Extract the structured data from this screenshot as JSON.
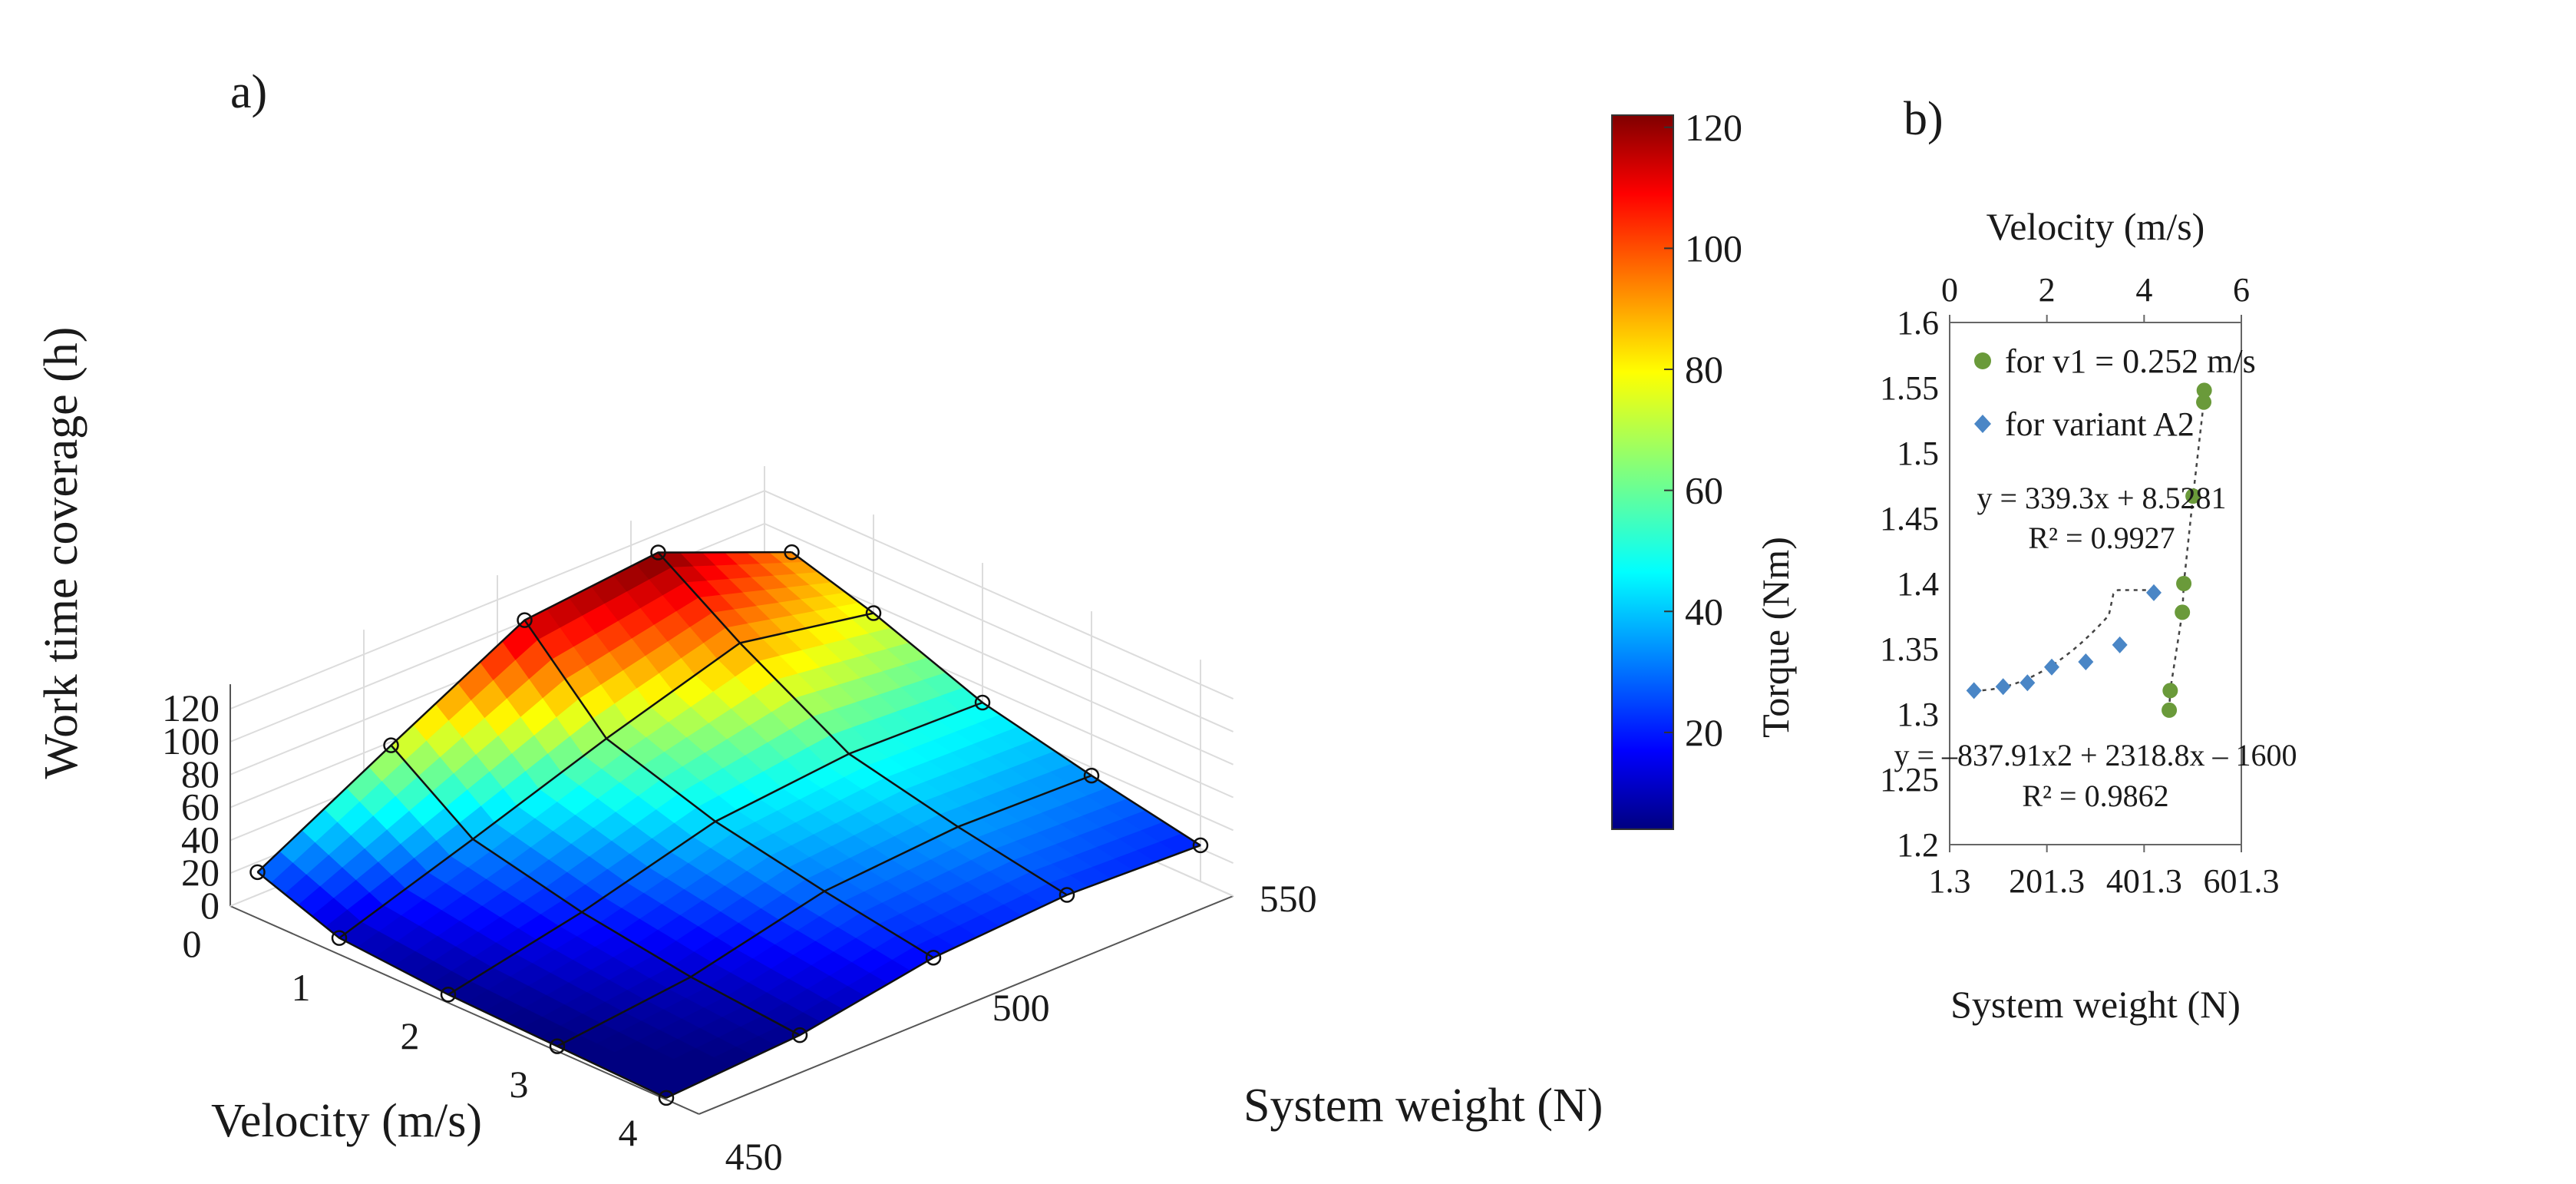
{
  "chart_data": [
    {
      "panel_label": "a)",
      "type": "surface3d",
      "xlabel": "Velocity (m/s)",
      "ylabel": "System weight (N)",
      "zlabel": "Work time coverage (h)",
      "x_ticks": [
        "0",
        "1",
        "2",
        "3",
        "4"
      ],
      "y_ticks": [
        "450",
        "500",
        "550"
      ],
      "z_ticks": [
        "0",
        "20",
        "40",
        "60",
        "80",
        "100",
        "120"
      ],
      "colorbar_ticks": [
        "20",
        "40",
        "60",
        "80",
        "100",
        "120"
      ],
      "colormap": "jet",
      "colorbar_range": [
        4,
        122
      ],
      "x": [
        0.25,
        1.0,
        2.0,
        3.0,
        4.0
      ],
      "y": [
        450,
        475,
        500,
        525,
        550
      ],
      "z": [
        [
          28,
          72,
          115,
          123,
          90
        ],
        [
          10,
          37,
          65,
          90,
          75
        ],
        [
          5,
          22,
          44,
          52,
          50
        ],
        [
          3,
          12,
          31,
          37,
          35
        ],
        [
          1,
          6,
          20,
          25,
          22
        ]
      ]
    },
    {
      "panel_label": "b)",
      "type": "scatter",
      "xlabel": "System weight (N)",
      "x2label": "Velocity (m/s)",
      "ylabel": "Torque (Nm)",
      "x_ticks": [
        "1.3",
        "201.3",
        "401.3",
        "601.3"
      ],
      "x2_ticks": [
        "0",
        "2",
        "4",
        "6"
      ],
      "y_ticks": [
        "1.2",
        "1.25",
        "1.3",
        "1.35",
        "1.4",
        "1.45",
        "1.5",
        "1.55",
        "1.6"
      ],
      "xlim": [
        1.3,
        601.3
      ],
      "x2lim": [
        0,
        6
      ],
      "ylim": [
        1.2,
        1.6
      ],
      "series": [
        {
          "name": "for v1 = 0.252 m/s",
          "marker": "circle",
          "color": "#6a9a3a",
          "x": [
            453,
            455,
            480,
            483,
            502,
            524,
            525
          ],
          "y": [
            1.303,
            1.318,
            1.378,
            1.4,
            1.467,
            1.539,
            1.548
          ],
          "trendline": "y = –837.91x2 + 2318.8x – 1600",
          "r2": "R² = 0.9862"
        },
        {
          "name": "for variant A2",
          "marker": "diamond",
          "color": "#4a86c6",
          "x": [
            0.5,
            1.1,
            1.6,
            2.1,
            2.8,
            3.5,
            4.2
          ],
          "y": [
            1.318,
            1.321,
            1.324,
            1.336,
            1.34,
            1.353,
            1.393
          ],
          "trendline": "y = 339.3x + 8.5281",
          "r2": "R² = 0.9927"
        }
      ]
    }
  ]
}
